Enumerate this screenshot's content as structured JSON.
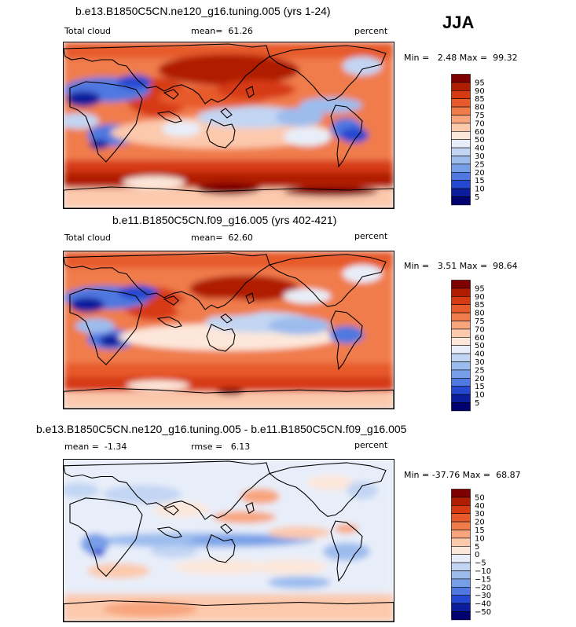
{
  "season": "JJA",
  "panels": [
    {
      "title": "b.e13.B1850C5CN.ne120_g16.tuning.005 (yrs 1-24)",
      "left_label": "Total cloud",
      "center_label": "mean=  61.26",
      "right_label": "percent",
      "minmax": "Min =   2.48 Max =  99.32",
      "colorbar": {
        "labels": [
          "95",
          "90",
          "85",
          "80",
          "75",
          "70",
          "60",
          "50",
          "40",
          "30",
          "25",
          "20",
          "15",
          "10",
          "5"
        ],
        "colors": [
          "#7f0000",
          "#b01c00",
          "#d63a12",
          "#e75a2a",
          "#f07c4b",
          "#f8a47c",
          "#fcc9ad",
          "#fde7da",
          "#e8eef9",
          "#c2d5f3",
          "#9cbcee",
          "#779ee8",
          "#4f78e0",
          "#2548d0",
          "#0b1d9c",
          "#000070"
        ]
      }
    },
    {
      "title": "b.e11.B1850C5CN.f09_g16.005 (yrs 402-421)",
      "left_label": "Total cloud",
      "center_label": "mean=  62.60",
      "right_label": "percent",
      "minmax": "Min =   3.51 Max =  98.64",
      "colorbar": {
        "labels": [
          "95",
          "90",
          "85",
          "80",
          "75",
          "70",
          "60",
          "50",
          "40",
          "30",
          "25",
          "20",
          "15",
          "10",
          "5"
        ],
        "colors": [
          "#7f0000",
          "#b01c00",
          "#d63a12",
          "#e75a2a",
          "#f07c4b",
          "#f8a47c",
          "#fcc9ad",
          "#fde7da",
          "#e8eef9",
          "#c2d5f3",
          "#9cbcee",
          "#779ee8",
          "#4f78e0",
          "#2548d0",
          "#0b1d9c",
          "#000070"
        ]
      }
    },
    {
      "title": "b.e13.B1850C5CN.ne120_g16.tuning.005 - b.e11.B1850C5CN.f09_g16.005",
      "left_label": "mean =  -1.34",
      "center_label": "rmse =   6.13",
      "right_label": "percent",
      "minmax": "Min = -37.76 Max =  68.87",
      "colorbar": {
        "labels": [
          "50",
          "40",
          "30",
          "20",
          "15",
          "10",
          "5",
          "0",
          "−5",
          "−10",
          "−15",
          "−20",
          "−30",
          "−40",
          "−50"
        ],
        "colors": [
          "#7f0000",
          "#b01c00",
          "#d63a12",
          "#e75a2a",
          "#f07c4b",
          "#f8a47c",
          "#fcc9ad",
          "#fde7da",
          "#e8eef9",
          "#c2d5f3",
          "#9cbcee",
          "#779ee8",
          "#4f78e0",
          "#2548d0",
          "#0b1d9c",
          "#000070"
        ]
      }
    }
  ]
}
